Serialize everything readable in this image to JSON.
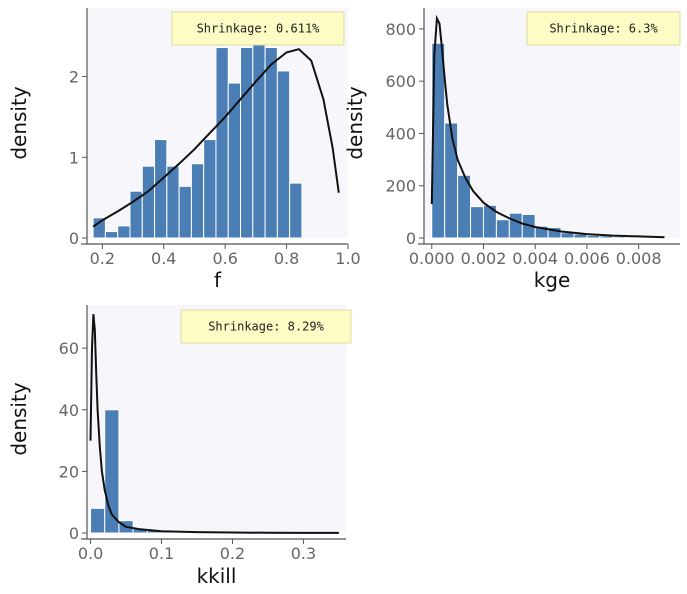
{
  "chart_data": [
    {
      "type": "histogram",
      "xlabel": "f",
      "ylabel": "density",
      "xlim": [
        0.15,
        1.0
      ],
      "ylim": [
        0,
        2.85
      ],
      "xticks": [
        "0.2",
        "0.4",
        "0.6",
        "0.8",
        "1.0"
      ],
      "yticks": [
        "0",
        "1",
        "2"
      ],
      "annotation": "Shrinkage: 0.611%",
      "bins": {
        "start": 0.17,
        "width": 0.04,
        "values": [
          0.25,
          0.08,
          0.15,
          0.58,
          0.89,
          1.22,
          0.89,
          0.64,
          0.92,
          1.22,
          2.36,
          1.92,
          2.36,
          2.44,
          2.36,
          2.07,
          0.68
        ]
      },
      "density_curve": {
        "x": [
          0.17,
          0.2,
          0.25,
          0.3,
          0.35,
          0.4,
          0.45,
          0.5,
          0.55,
          0.6,
          0.65,
          0.7,
          0.75,
          0.8,
          0.84,
          0.88,
          0.92,
          0.95,
          0.97
        ],
        "y": [
          0.14,
          0.22,
          0.33,
          0.45,
          0.58,
          0.75,
          0.92,
          1.1,
          1.3,
          1.5,
          1.72,
          1.94,
          2.15,
          2.3,
          2.34,
          2.2,
          1.72,
          1.12,
          0.56
        ]
      }
    },
    {
      "type": "histogram",
      "xlabel": "kge",
      "ylabel": "density",
      "xlim": [
        -0.0003,
        0.0096
      ],
      "ylim": [
        0,
        880
      ],
      "xticks": [
        "0.000",
        "0.002",
        "0.004",
        "0.006",
        "0.008"
      ],
      "yticks": [
        "0",
        "200",
        "400",
        "600",
        "800"
      ],
      "annotation": "Shrinkage: 6.3%",
      "bins": {
        "start": 0.0,
        "width": 0.0005,
        "values": [
          745,
          440,
          240,
          120,
          125,
          70,
          95,
          90,
          45,
          40,
          20,
          15,
          10,
          8,
          5,
          3,
          2,
          1
        ]
      },
      "density_curve": {
        "x": [
          0.0,
          0.0001,
          0.0002,
          0.0003,
          0.0004,
          0.0005,
          0.0006,
          0.0008,
          0.001,
          0.0013,
          0.0016,
          0.002,
          0.0025,
          0.003,
          0.0035,
          0.004,
          0.005,
          0.006,
          0.007,
          0.008,
          0.009
        ],
        "y": [
          130,
          700,
          840,
          820,
          720,
          610,
          510,
          380,
          300,
          230,
          180,
          135,
          100,
          75,
          55,
          42,
          25,
          15,
          9,
          6,
          3
        ]
      }
    },
    {
      "type": "histogram",
      "xlabel": "kkill",
      "ylabel": "density",
      "xlim": [
        -0.005,
        0.36
      ],
      "ylim": [
        0,
        74
      ],
      "xticks": [
        "0.0",
        "0.1",
        "0.2",
        "0.3"
      ],
      "yticks": [
        "0",
        "20",
        "40",
        "60"
      ],
      "annotation": "Shrinkage: 8.29%",
      "bins": {
        "start": 0.0,
        "width": 0.02,
        "values": [
          8,
          40,
          4,
          1.5,
          0.8,
          0.5,
          0.3,
          0.2,
          0.15,
          0.1,
          0.1,
          0.05,
          0.05,
          0.05,
          0.05,
          0.05,
          0.05,
          0.05
        ]
      },
      "density_curve": {
        "x": [
          0.0,
          0.002,
          0.004,
          0.006,
          0.008,
          0.01,
          0.013,
          0.016,
          0.02,
          0.025,
          0.03,
          0.04,
          0.05,
          0.07,
          0.1,
          0.15,
          0.2,
          0.25,
          0.3,
          0.35
        ],
        "y": [
          30,
          60,
          71,
          66,
          52,
          40,
          28,
          20,
          14,
          9,
          6,
          3.5,
          2,
          1.2,
          0.6,
          0.3,
          0.15,
          0.08,
          0.04,
          0.02
        ]
      }
    }
  ]
}
